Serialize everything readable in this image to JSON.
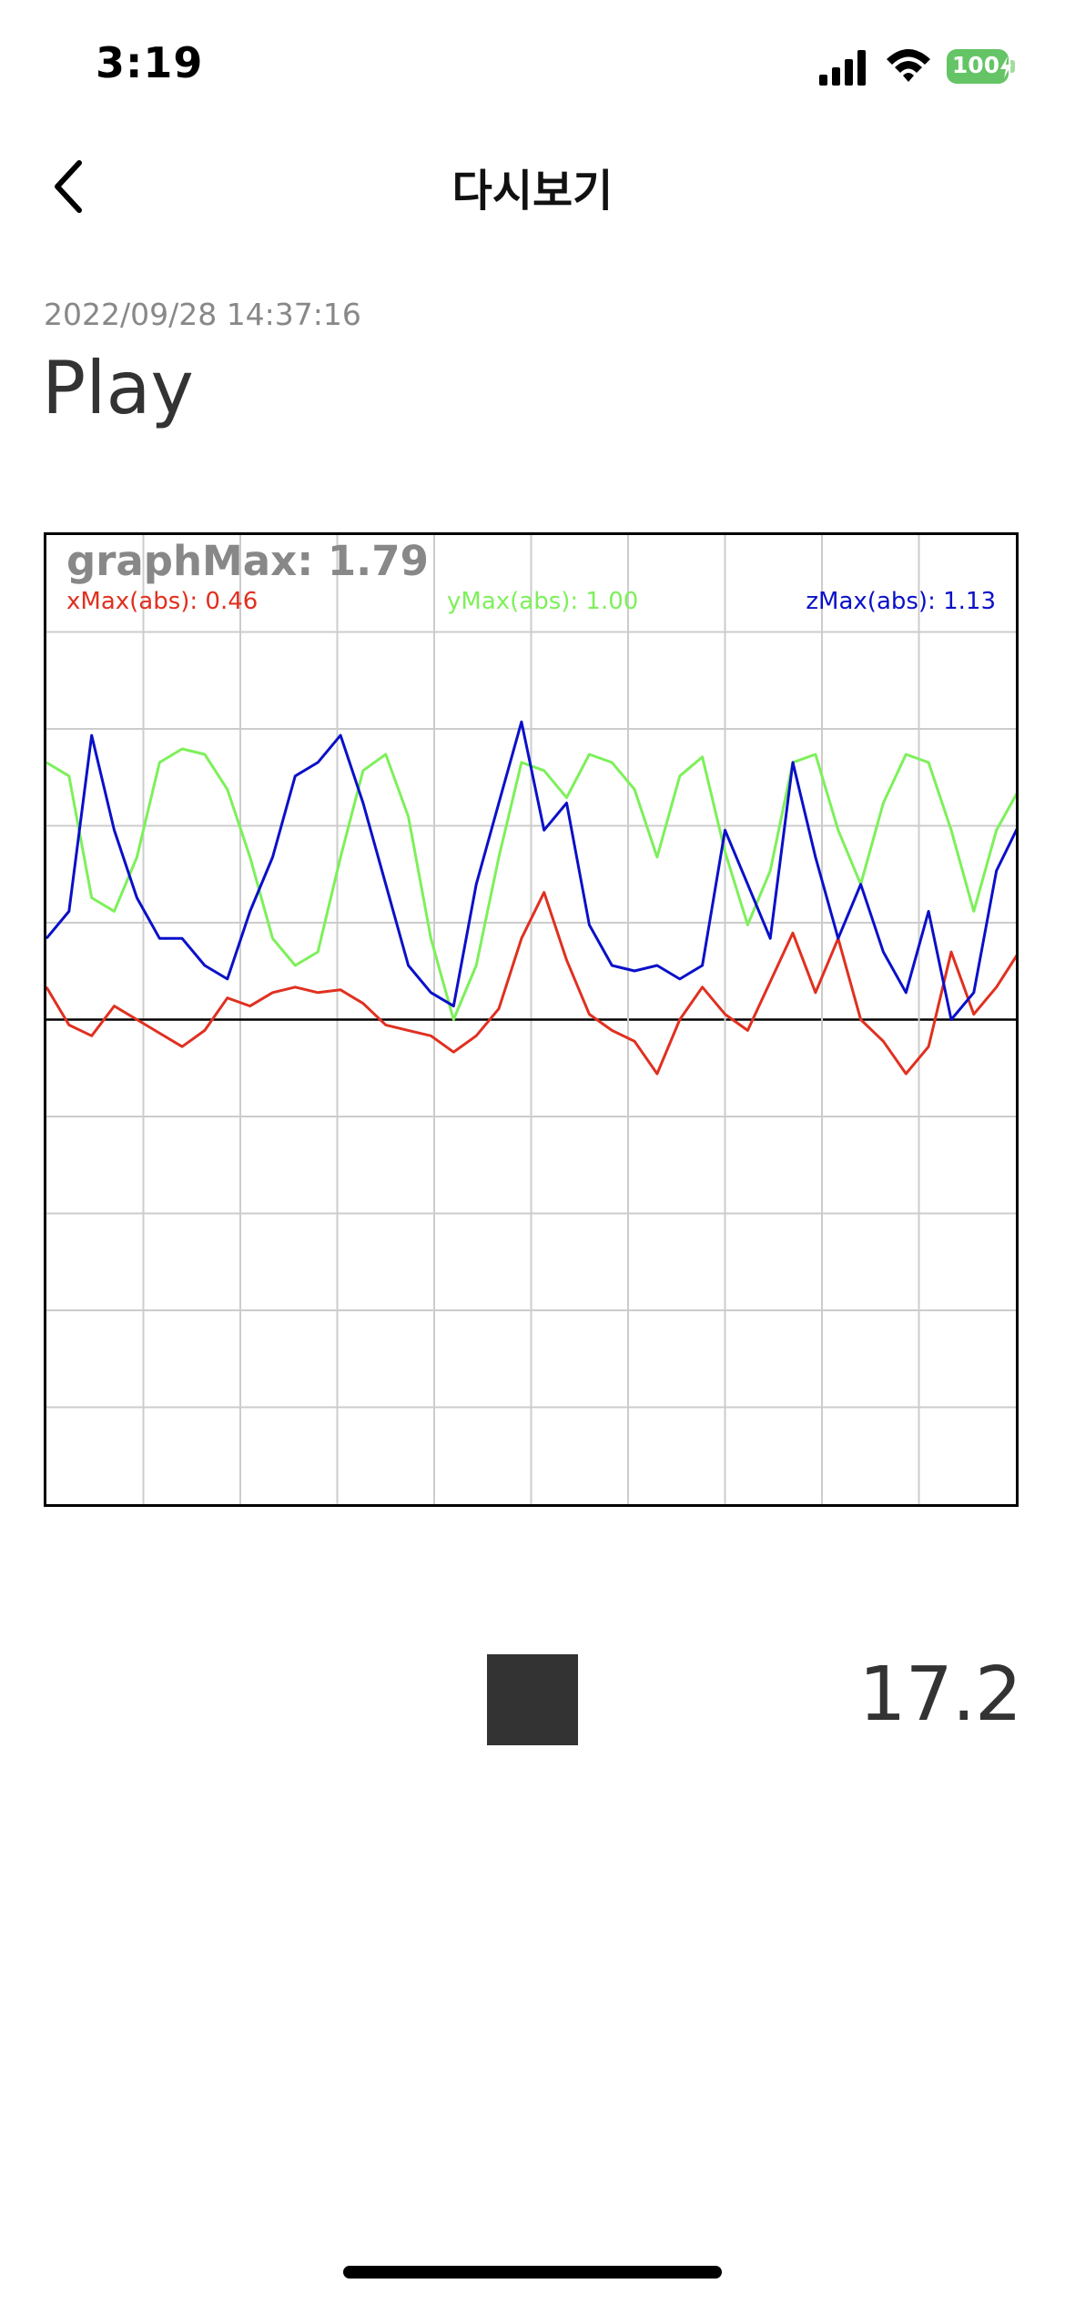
{
  "status_bar": {
    "time": "3:19",
    "battery": "100",
    "icons": [
      "signal-icon",
      "wifi-icon",
      "battery-icon",
      "charging-bolt-icon"
    ]
  },
  "nav": {
    "title": "다시보기",
    "back_icon": "chevron-left-icon"
  },
  "recording": {
    "timestamp": "2022/09/28 14:37:16",
    "title": "Play"
  },
  "graph": {
    "graph_max_label": "graphMax: 1.79",
    "x_max_label": "xMax(abs): 0.46",
    "y_max_label": "yMax(abs): 1.00",
    "z_max_label": "zMax(abs): 1.13"
  },
  "chart_data": {
    "type": "line",
    "ylim": [
      -1.79,
      1.79
    ],
    "grid": true,
    "grid_divisions": 10,
    "x_count_full": 300,
    "x": [
      0,
      2,
      4,
      6,
      8,
      10,
      12,
      14,
      16,
      18,
      20,
      22,
      24,
      26,
      28,
      30,
      32,
      34,
      36,
      38,
      40,
      42,
      44,
      46,
      48,
      50,
      52,
      54,
      56,
      58,
      60,
      62,
      64,
      66,
      68,
      70,
      72,
      74,
      76,
      78,
      80,
      82,
      84,
      86
    ],
    "series": [
      {
        "color": "#e03020",
        "values": [
          0.12,
          -0.02,
          -0.06,
          0.05,
          0.0,
          -0.05,
          -0.1,
          -0.04,
          0.08,
          0.05,
          0.1,
          0.12,
          0.1,
          0.11,
          0.06,
          -0.02,
          -0.04,
          -0.06,
          -0.12,
          -0.06,
          0.04,
          0.3,
          0.47,
          0.22,
          0.02,
          -0.04,
          -0.08,
          -0.2,
          0.0,
          0.12,
          0.02,
          -0.04,
          0.14,
          0.32,
          0.1,
          0.3,
          0.0,
          -0.08,
          -0.2,
          -0.1,
          0.25,
          0.02,
          0.12,
          0.25
        ]
      },
      {
        "color": "#7df05a",
        "values": [
          0.95,
          0.9,
          0.45,
          0.4,
          0.6,
          0.95,
          1.0,
          0.98,
          0.85,
          0.6,
          0.3,
          0.2,
          0.25,
          0.6,
          0.92,
          0.98,
          0.75,
          0.3,
          0.0,
          0.2,
          0.6,
          0.95,
          0.92,
          0.82,
          0.98,
          0.95,
          0.85,
          0.6,
          0.9,
          0.97,
          0.62,
          0.35,
          0.55,
          0.95,
          0.98,
          0.7,
          0.5,
          0.8,
          0.98,
          0.95,
          0.7,
          0.4,
          0.7,
          0.85
        ]
      },
      {
        "color": "#0a10c8",
        "values": [
          0.3,
          0.4,
          1.05,
          0.7,
          0.45,
          0.3,
          0.3,
          0.2,
          0.15,
          0.4,
          0.6,
          0.9,
          0.95,
          1.05,
          0.8,
          0.5,
          0.2,
          0.1,
          0.05,
          0.5,
          0.8,
          1.1,
          0.7,
          0.8,
          0.35,
          0.2,
          0.18,
          0.2,
          0.15,
          0.2,
          0.7,
          0.5,
          0.3,
          0.95,
          0.6,
          0.3,
          0.5,
          0.25,
          0.1,
          0.4,
          0.0,
          0.1,
          0.55,
          0.72
        ]
      }
    ]
  },
  "player": {
    "stop_icon": "stop-square-icon",
    "elapsed": "17.2"
  }
}
